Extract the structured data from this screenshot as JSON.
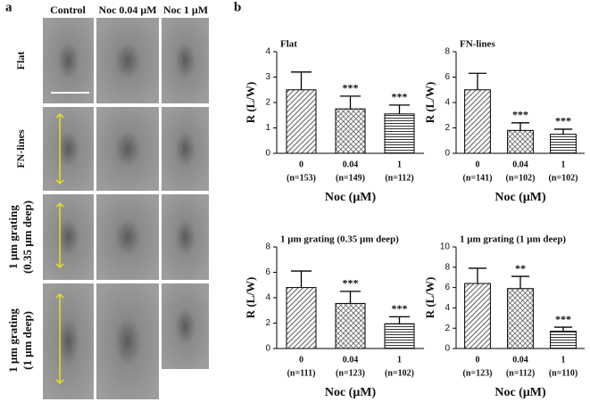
{
  "panel_a": {
    "label": "a",
    "column_headers": [
      "Control",
      "Noc 0.04 μM",
      "Noc 1 μM"
    ],
    "row_labels": [
      [
        "Flat"
      ],
      [
        "FN-lines"
      ],
      [
        "1 μm grating",
        "(0.35 μm deep)"
      ],
      [
        "1 μm grating",
        "(1 μm deep)"
      ]
    ]
  },
  "panel_b": {
    "label": "b"
  },
  "chart_data": [
    {
      "type": "bar",
      "title": "Flat",
      "categories": [
        "0",
        "0.04",
        "1"
      ],
      "category_notes": [
        "(n=153)",
        "(n=149)",
        "(n=112)"
      ],
      "values": [
        2.5,
        1.75,
        1.55
      ],
      "errors": [
        0.7,
        0.5,
        0.35
      ],
      "annotations": [
        null,
        "***",
        "***"
      ],
      "xlabel": "Noc (μM)",
      "ylabel": "R (L/W)",
      "ylim": [
        0,
        4
      ],
      "yticks": [
        0,
        1,
        2,
        3,
        4
      ]
    },
    {
      "type": "bar",
      "title": "FN-lines",
      "categories": [
        "0",
        "0.04",
        "1"
      ],
      "category_notes": [
        "(n=141)",
        "(n=102)",
        "(n=102)"
      ],
      "values": [
        5.0,
        1.8,
        1.5
      ],
      "errors": [
        1.3,
        0.6,
        0.4
      ],
      "annotations": [
        null,
        "***",
        "***"
      ],
      "xlabel": "Noc (μM)",
      "ylabel": "R (L/W)",
      "ylim": [
        0,
        8
      ],
      "yticks": [
        0,
        2,
        4,
        6,
        8
      ]
    },
    {
      "type": "bar",
      "title": "1 μm grating (0.35 μm deep)",
      "categories": [
        "0",
        "0.04",
        "1"
      ],
      "category_notes": [
        "(n=111)",
        "(n=123)",
        "(n=102)"
      ],
      "values": [
        4.8,
        3.55,
        1.95
      ],
      "errors": [
        1.3,
        0.95,
        0.55
      ],
      "annotations": [
        null,
        "***",
        "***"
      ],
      "xlabel": "Noc (μM)",
      "ylabel": "R (L/W)",
      "ylim": [
        0,
        8
      ],
      "yticks": [
        0,
        2,
        4,
        6,
        8
      ]
    },
    {
      "type": "bar",
      "title": "1 μm grating (1 μm deep)",
      "categories": [
        "0",
        "0.04",
        "1"
      ],
      "category_notes": [
        "(n=123)",
        "(n=112)",
        "(n=110)"
      ],
      "values": [
        6.4,
        5.9,
        1.7
      ],
      "errors": [
        1.5,
        1.2,
        0.4
      ],
      "annotations": [
        null,
        "**",
        "***"
      ],
      "xlabel": "Noc (μM)",
      "ylabel": "R (L/W)",
      "ylim": [
        0,
        10
      ],
      "yticks": [
        0,
        2,
        4,
        6,
        8,
        10
      ]
    }
  ]
}
